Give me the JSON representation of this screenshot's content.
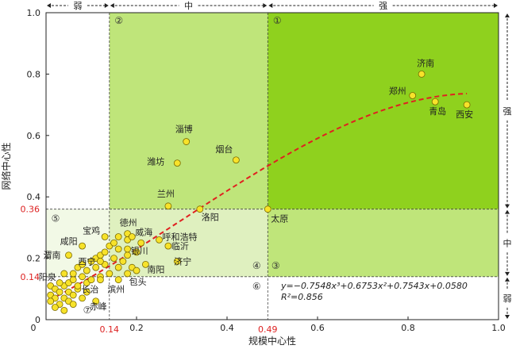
{
  "chart_data": {
    "type": "scatter",
    "title": "",
    "xlabel": "规模中心性",
    "ylabel": "网络中心性",
    "xlim": [
      0,
      1.0
    ],
    "ylim": [
      0,
      1.0
    ],
    "x_ticks": [
      "0",
      "0.2",
      "0.4",
      "0.6",
      "0.8",
      "1.0"
    ],
    "y_ticks": [
      "0",
      "0.2",
      "0.4",
      "0.6",
      "0.8",
      "1.0"
    ],
    "x_thresholds": [
      {
        "value": 0.14,
        "label": "0.14"
      },
      {
        "value": 0.49,
        "label": "0.49"
      }
    ],
    "y_thresholds": [
      {
        "value": 0.14,
        "label": "0.14"
      },
      {
        "value": 0.36,
        "label": "0.36"
      }
    ],
    "x_bands": [
      "弱",
      "中",
      "强"
    ],
    "y_bands": [
      "强",
      "中",
      "弱"
    ],
    "zones": [
      "①",
      "②",
      "③",
      "④",
      "⑤",
      "⑥",
      "⑦"
    ],
    "labeled_points": [
      {
        "name": "济南",
        "x": 0.83,
        "y": 0.8
      },
      {
        "name": "郑州",
        "x": 0.81,
        "y": 0.73
      },
      {
        "name": "青岛",
        "x": 0.86,
        "y": 0.71
      },
      {
        "name": "西安",
        "x": 0.93,
        "y": 0.7
      },
      {
        "name": "淄博",
        "x": 0.31,
        "y": 0.58
      },
      {
        "name": "潍坊",
        "x": 0.29,
        "y": 0.51
      },
      {
        "name": "烟台",
        "x": 0.42,
        "y": 0.52
      },
      {
        "name": "兰州",
        "x": 0.27,
        "y": 0.37
      },
      {
        "name": "洛阳",
        "x": 0.34,
        "y": 0.36
      },
      {
        "name": "太原",
        "x": 0.49,
        "y": 0.36
      },
      {
        "name": "德州",
        "x": 0.18,
        "y": 0.28
      },
      {
        "name": "威海",
        "x": 0.19,
        "y": 0.27
      },
      {
        "name": "呼和浩特",
        "x": 0.25,
        "y": 0.26
      },
      {
        "name": "临沂",
        "x": 0.27,
        "y": 0.24
      },
      {
        "name": "银川",
        "x": 0.18,
        "y": 0.23
      },
      {
        "name": "济宁",
        "x": 0.29,
        "y": 0.19
      },
      {
        "name": "南阳",
        "x": 0.22,
        "y": 0.18
      },
      {
        "name": "包头",
        "x": 0.18,
        "y": 0.15
      },
      {
        "name": "宝鸡",
        "x": 0.13,
        "y": 0.27
      },
      {
        "name": "咸阳",
        "x": 0.08,
        "y": 0.24
      },
      {
        "name": "渭南",
        "x": 0.05,
        "y": 0.21
      },
      {
        "name": "西宁",
        "x": 0.12,
        "y": 0.19
      },
      {
        "name": "阳泉",
        "x": 0.04,
        "y": 0.15
      },
      {
        "name": "长治",
        "x": 0.12,
        "y": 0.13
      },
      {
        "name": "滨州",
        "x": 0.16,
        "y": 0.13
      },
      {
        "name": "赤峰",
        "x": 0.11,
        "y": 0.06
      }
    ],
    "unlabeled_points": [
      [
        0.01,
        0.11
      ],
      [
        0.02,
        0.1
      ],
      [
        0.01,
        0.08
      ],
      [
        0.03,
        0.09
      ],
      [
        0.02,
        0.07
      ],
      [
        0.01,
        0.06
      ],
      [
        0.03,
        0.05
      ],
      [
        0.04,
        0.07
      ],
      [
        0.05,
        0.06
      ],
      [
        0.02,
        0.04
      ],
      [
        0.04,
        0.11
      ],
      [
        0.05,
        0.12
      ],
      [
        0.06,
        0.13
      ],
      [
        0.03,
        0.12
      ],
      [
        0.05,
        0.09
      ],
      [
        0.06,
        0.08
      ],
      [
        0.07,
        0.1
      ],
      [
        0.08,
        0.14
      ],
      [
        0.09,
        0.12
      ],
      [
        0.06,
        0.15
      ],
      [
        0.07,
        0.17
      ],
      [
        0.08,
        0.18
      ],
      [
        0.09,
        0.16
      ],
      [
        0.1,
        0.19
      ],
      [
        0.11,
        0.2
      ],
      [
        0.12,
        0.21
      ],
      [
        0.11,
        0.17
      ],
      [
        0.13,
        0.22
      ],
      [
        0.14,
        0.24
      ],
      [
        0.15,
        0.2
      ],
      [
        0.16,
        0.23
      ],
      [
        0.15,
        0.25
      ],
      [
        0.13,
        0.18
      ],
      [
        0.14,
        0.15
      ],
      [
        0.12,
        0.14
      ],
      [
        0.1,
        0.13
      ],
      [
        0.16,
        0.17
      ],
      [
        0.17,
        0.19
      ],
      [
        0.18,
        0.21
      ],
      [
        0.2,
        0.22
      ],
      [
        0.21,
        0.25
      ],
      [
        0.19,
        0.17
      ],
      [
        0.2,
        0.16
      ],
      [
        0.09,
        0.09
      ],
      [
        0.08,
        0.07
      ],
      [
        0.04,
        0.03
      ],
      [
        0.07,
        0.11
      ],
      [
        0.06,
        0.05
      ],
      [
        0.16,
        0.27
      ],
      [
        0.18,
        0.26
      ]
    ],
    "trend": {
      "type": "polynomial",
      "coefficients": [
        0.058,
        0.7543,
        0.6753,
        -0.7548
      ]
    },
    "equation_text": "y=−0.7548x³+0.6753x²+0.7543x+0.0580",
    "r2_text": "R²=0.856",
    "colors": {
      "strong_fill": "#8fd11e",
      "mid_fill": "#bfe57a",
      "mid_band_fill": "#dff0bf",
      "weak_fill": "#f2f9e6",
      "point_fill": "#f7e22a",
      "point_stroke": "#7a6a00",
      "trend_line": "#e02020",
      "threshold_label": "#dd2222"
    }
  }
}
